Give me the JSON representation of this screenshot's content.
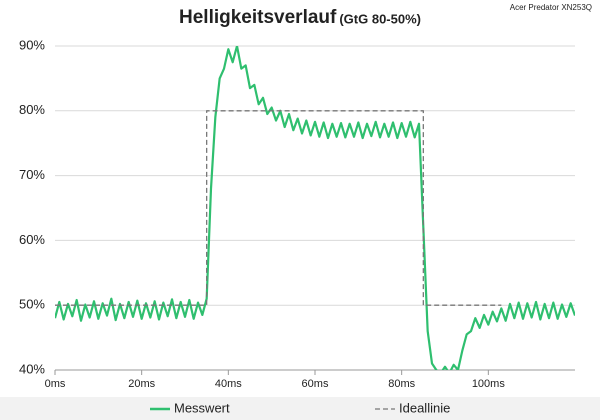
{
  "chart_data": {
    "type": "line",
    "title": "Helligkeitsverlauf",
    "subtitle": "(GtG 80-50%)",
    "annotation": "Acer Predator XN253Q",
    "xlim": [
      0,
      120
    ],
    "ylim": [
      40,
      90
    ],
    "xticks": [
      {
        "value": 0,
        "label": "0ms"
      },
      {
        "value": 20,
        "label": "20ms"
      },
      {
        "value": 40,
        "label": "40ms"
      },
      {
        "value": 60,
        "label": "60ms"
      },
      {
        "value": 80,
        "label": "80ms"
      },
      {
        "value": 100,
        "label": "100ms"
      }
    ],
    "yticks": [
      {
        "value": 40,
        "label": "40%"
      },
      {
        "value": 50,
        "label": "50%"
      },
      {
        "value": 60,
        "label": "60%"
      },
      {
        "value": 70,
        "label": "70%"
      },
      {
        "value": 80,
        "label": "80%"
      },
      {
        "value": 90,
        "label": "90%"
      }
    ],
    "grid": true,
    "series": [
      {
        "name": "Messwert",
        "color": "#2fbf6f",
        "style": "solid",
        "x": [
          0,
          1,
          2,
          3,
          4,
          5,
          6,
          7,
          8,
          9,
          10,
          11,
          12,
          13,
          14,
          15,
          16,
          17,
          18,
          19,
          20,
          21,
          22,
          23,
          24,
          25,
          26,
          27,
          28,
          29,
          30,
          31,
          32,
          33,
          34,
          35,
          36,
          37,
          38,
          39,
          40,
          41,
          42,
          43,
          44,
          45,
          46,
          47,
          48,
          49,
          50,
          51,
          52,
          53,
          54,
          55,
          56,
          57,
          58,
          59,
          60,
          61,
          62,
          63,
          64,
          65,
          66,
          67,
          68,
          69,
          70,
          71,
          72,
          73,
          74,
          75,
          76,
          77,
          78,
          79,
          80,
          81,
          82,
          83,
          84,
          85,
          86,
          87,
          88,
          89,
          90,
          91,
          92,
          93,
          94,
          95,
          96,
          97,
          98,
          99,
          100,
          101,
          102,
          103,
          104,
          105,
          106,
          107,
          108,
          109,
          110,
          111,
          112,
          113,
          114,
          115,
          116,
          117,
          118,
          119,
          120
        ],
        "values": [
          48,
          50.5,
          47.8,
          50.2,
          48.3,
          50.8,
          47.6,
          50.1,
          48.1,
          50.6,
          47.9,
          50.3,
          48.4,
          51,
          47.7,
          50.2,
          48,
          50.5,
          48.2,
          50.7,
          47.9,
          50.3,
          48.1,
          50.6,
          47.8,
          50.4,
          48.3,
          50.9,
          48,
          50.5,
          48.2,
          50.8,
          47.9,
          50.4,
          48.5,
          51,
          68,
          79,
          85,
          86.5,
          89.5,
          87.5,
          90,
          86.5,
          87,
          83.5,
          84,
          81,
          82,
          79.5,
          80.5,
          78.5,
          80,
          77.5,
          79.5,
          77,
          78.8,
          76.5,
          78.5,
          76.2,
          78.3,
          76,
          78.2,
          75.8,
          78,
          76,
          78.1,
          75.9,
          78,
          76,
          78.2,
          75.8,
          78,
          76.1,
          78.3,
          75.9,
          78,
          76,
          78.2,
          75.8,
          78.1,
          76,
          78.3,
          75.9,
          78,
          62,
          46,
          41,
          40,
          39.5,
          40.5,
          39.5,
          40.8,
          40,
          43,
          45.5,
          46,
          48,
          46.5,
          48.5,
          47,
          49,
          47.5,
          49.5,
          47.6,
          50.2,
          48,
          50.4,
          47.9,
          50.3,
          48.1,
          50.5,
          47.8,
          50.2,
          48,
          50.4,
          47.9,
          50.1,
          48.2,
          50.3,
          48.4
        ]
      },
      {
        "name": "Ideallinie",
        "color": "#777777",
        "style": "dashed",
        "x": [
          0,
          35,
          35,
          85,
          85,
          103
        ],
        "values": [
          50,
          50,
          80,
          80,
          50,
          50
        ]
      }
    ]
  }
}
